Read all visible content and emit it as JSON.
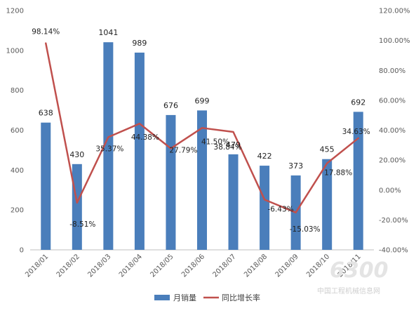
{
  "chart_data": {
    "type": "bar",
    "categories": [
      "2018/01",
      "2018/02",
      "2018/03",
      "2018/04",
      "2018/05",
      "2018/06",
      "2018/07",
      "2018/08",
      "2018/09",
      "2018/10",
      "2018/11"
    ],
    "series": [
      {
        "name": "月销量",
        "type": "bar",
        "axis": "left",
        "color": "#4a7ebb",
        "values": [
          638,
          430,
          1041,
          989,
          676,
          699,
          479,
          422,
          373,
          455,
          692
        ],
        "labels": [
          "638",
          "430",
          "1041",
          "989",
          "676",
          "699",
          "479",
          "422",
          "373",
          "455",
          "692"
        ]
      },
      {
        "name": "同比增长率",
        "type": "line",
        "axis": "right",
        "color": "#c0504d",
        "values": [
          98.14,
          -8.51,
          35.37,
          44.38,
          27.79,
          41.5,
          38.84,
          -6.43,
          -15.03,
          17.88,
          34.63
        ],
        "labels": [
          "98.14%",
          "-8.51%",
          "35.37%",
          "44.38%",
          "27.79%",
          "41.50%",
          "38.84%",
          "-6.43%",
          "-15.03%",
          "17.88%",
          "34.63%"
        ]
      }
    ],
    "title": "",
    "xlabel": "",
    "ylabel": "",
    "ylim": [
      0,
      1200
    ],
    "y_ticks": [
      "0",
      "200",
      "400",
      "600",
      "800",
      "1000",
      "1200"
    ],
    "y2lim": [
      -40,
      120
    ],
    "y2_ticks": [
      "-40.00%",
      "-20.00%",
      "0.00%",
      "20.00%",
      "40.00%",
      "60.00%",
      "80.00%",
      "100.00%",
      "120.00%"
    ],
    "grid": false,
    "legend_position": "bottom"
  },
  "watermark": {
    "logo_text": "6300",
    "site_name": "中国工程机械信息网"
  }
}
